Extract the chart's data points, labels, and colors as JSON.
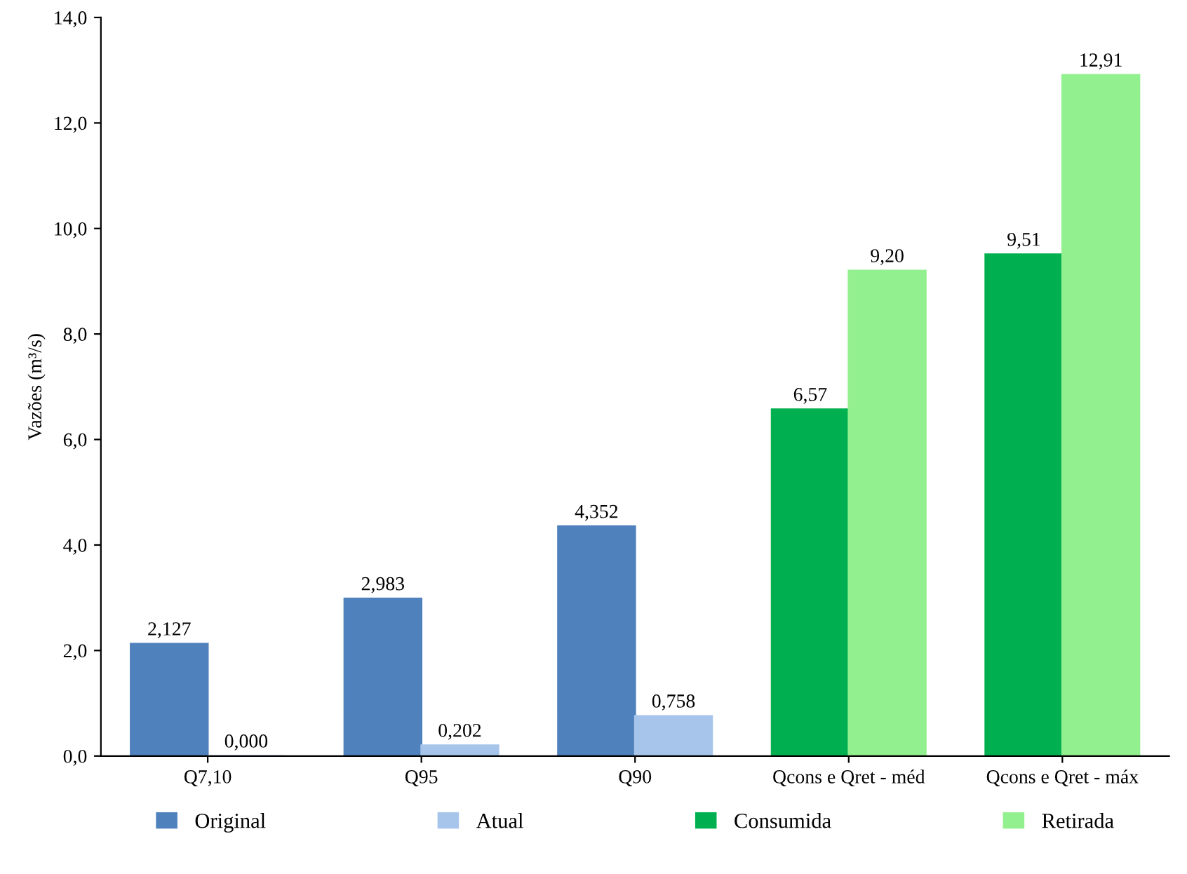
{
  "chart_data": {
    "type": "bar",
    "ylabel": "Vazões (m³/s)",
    "categories": [
      "Q7,10",
      "Q95",
      "Q90",
      "Qcons e Qret - méd",
      "Qcons e Qret - máx"
    ],
    "series": [
      {
        "name": "Original",
        "color": "#4f81bd",
        "values": [
          2.127,
          2.983,
          4.352,
          null,
          null
        ],
        "value_labels": [
          "2,127",
          "2,983",
          "4,352",
          null,
          null
        ]
      },
      {
        "name": "Atual",
        "color": "#a7c5eb",
        "values": [
          0.0,
          0.202,
          0.758,
          null,
          null
        ],
        "value_labels": [
          "0,000",
          "0,202",
          "0,758",
          null,
          null
        ]
      },
      {
        "name": "Consumida",
        "color": "#00b050",
        "values": [
          null,
          null,
          null,
          6.57,
          9.51
        ],
        "value_labels": [
          null,
          null,
          null,
          "6,57",
          "9,51"
        ]
      },
      {
        "name": "Retirada",
        "color": "#93f08f",
        "values": [
          null,
          null,
          null,
          9.2,
          12.91
        ],
        "value_labels": [
          null,
          null,
          null,
          "9,20",
          "12,91"
        ]
      }
    ],
    "ylim": [
      0,
      14
    ],
    "yticks": [
      {
        "value": 0,
        "label": "0,0"
      },
      {
        "value": 2,
        "label": "2,0"
      },
      {
        "value": 4,
        "label": "4,0"
      },
      {
        "value": 6,
        "label": "6,0"
      },
      {
        "value": 8,
        "label": "8,0"
      },
      {
        "value": 10,
        "label": "10,0"
      },
      {
        "value": 12,
        "label": "12,0"
      },
      {
        "value": 14,
        "label": "14,0"
      }
    ],
    "grid": false,
    "legend": "bottom"
  }
}
